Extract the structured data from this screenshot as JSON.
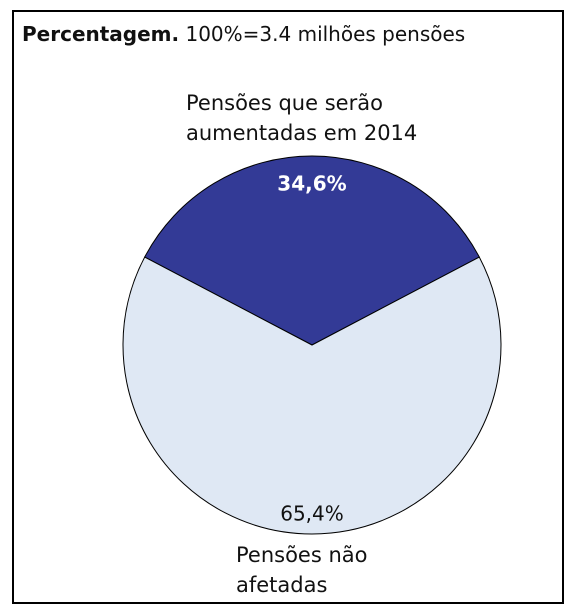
{
  "chart_data": {
    "type": "pie",
    "title": "Percentagem.",
    "subtitle": "100%=3.4 milhões pensões",
    "categories": [
      "Pensões que serão aumentadas em 2014",
      "Pensões não afetadas"
    ],
    "values": [
      34.6,
      65.4
    ],
    "value_labels": [
      "34,6%",
      "65,4%"
    ],
    "colors": [
      "#333a96",
      "#dfe8f4"
    ]
  }
}
